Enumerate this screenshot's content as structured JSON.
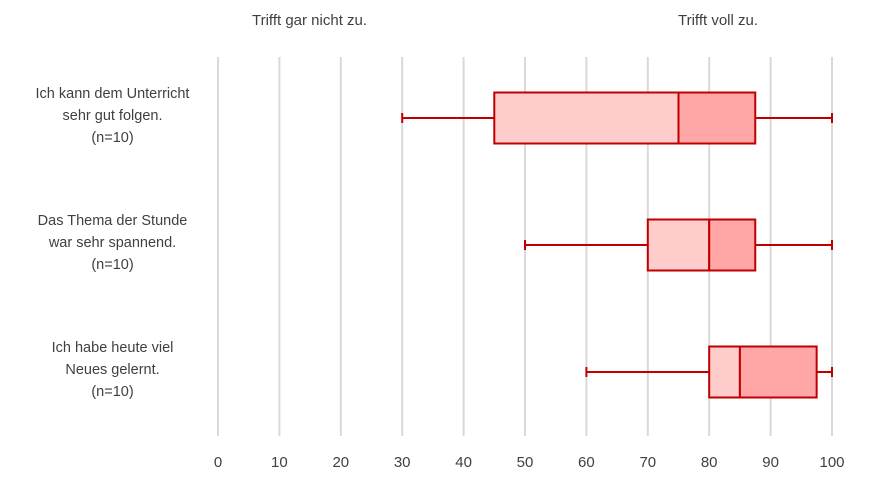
{
  "header": {
    "left": "Trifft gar nicht zu.",
    "right": "Trifft voll zu."
  },
  "chart_data": {
    "type": "boxplot",
    "orientation": "horizontal",
    "title": "",
    "xlim": [
      0,
      100
    ],
    "xticks": [
      0,
      10,
      20,
      30,
      40,
      50,
      60,
      70,
      80,
      90,
      100
    ],
    "grid": true,
    "colors": {
      "stroke": "#c00000",
      "q1_fill": "#ffcccc",
      "q3_fill": "#ffa6a6",
      "grid": "#d9d9d9"
    },
    "categories": [
      {
        "lines": [
          "Ich kann dem Unterricht",
          "sehr gut folgen.",
          "(n=10)"
        ],
        "min": 30,
        "q1": 45,
        "median": 75,
        "q3": 87.5,
        "max": 100
      },
      {
        "lines": [
          "Das Thema der Stunde",
          "war sehr spannend.",
          "(n=10)"
        ],
        "min": 50,
        "q1": 70,
        "median": 80,
        "q3": 87.5,
        "max": 100
      },
      {
        "lines": [
          "Ich habe heute viel",
          "Neues gelernt.",
          "(n=10)"
        ],
        "min": 60,
        "q1": 80,
        "median": 85,
        "q3": 97.5,
        "max": 100
      }
    ]
  }
}
